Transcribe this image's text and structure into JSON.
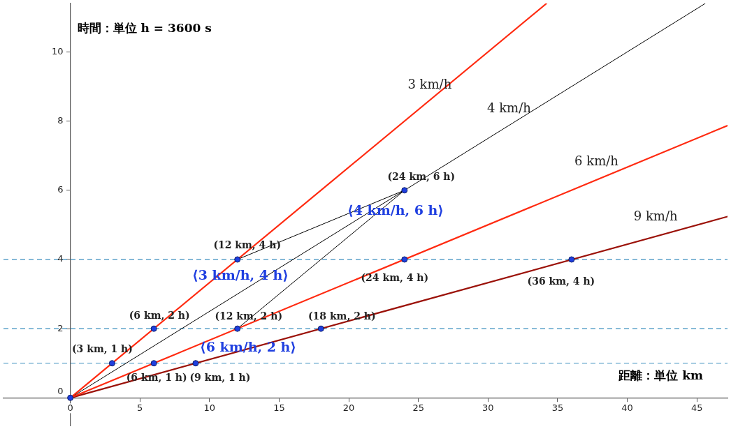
{
  "chart_data": {
    "type": "line",
    "xlabel": "距離：単位 km",
    "ylabel": "時間：単位 h = 3600 s",
    "xlim": [
      -4.8,
      47.2
    ],
    "ylim": [
      -0.8,
      11.4
    ],
    "xticks": [
      0,
      5,
      10,
      15,
      20,
      25,
      30,
      35,
      40,
      45
    ],
    "yticks": [
      0,
      2,
      4,
      6,
      8,
      10
    ],
    "grid": false,
    "legend": false,
    "series": [
      {
        "name": "3 km/h",
        "color": "#ff2a10",
        "x": [
          0,
          34.2
        ],
        "values": [
          0,
          11.4
        ]
      },
      {
        "name": "4 km/h",
        "color": "#000000",
        "x": [
          0,
          45.6
        ],
        "values": [
          0,
          11.4
        ]
      },
      {
        "name": "6 km/h",
        "color": "#ff2a10",
        "x": [
          0,
          47.2
        ],
        "values": [
          0,
          7.87
        ]
      },
      {
        "name": "9 km/h",
        "color": "#9b1108",
        "x": [
          0,
          47.2
        ],
        "values": [
          0,
          5.24
        ]
      },
      {
        "color": "#000000",
        "x": [
          12,
          24
        ],
        "values": [
          4,
          6
        ]
      },
      {
        "color": "#000000",
        "x": [
          12,
          24
        ],
        "values": [
          2,
          6
        ]
      },
      {
        "type": "scatter",
        "color": "#1f3fe0",
        "marker": "circle",
        "x": [
          0,
          3,
          6,
          12,
          24,
          6,
          12,
          24,
          9,
          18,
          36
        ],
        "values": [
          0,
          1,
          2,
          4,
          6,
          1,
          2,
          4,
          1,
          2,
          4
        ],
        "value_labels": [
          null,
          "(3 km, 1 h)",
          "(6 km, 2 h)",
          "(12 km, 4 h)",
          "(24 km, 6 h)",
          "(6 km, 1 h)",
          "(12 km, 2 h)",
          "(24 km, 4 h)",
          "(9 km, 1 h)",
          "(18 km, 2 h)",
          "(36 km, 4 h)"
        ]
      }
    ],
    "ref_lines": [
      {
        "axis": "y",
        "value": 1,
        "color": "#3d8fbf",
        "line_style": "dashed"
      },
      {
        "axis": "y",
        "value": 2,
        "color": "#3d8fbf",
        "line_style": "dashed"
      },
      {
        "axis": "y",
        "value": 4,
        "color": "#3d8fbf",
        "line_style": "dashed"
      }
    ],
    "annotations": [
      "⟨3 km/h, 4 h⟩",
      "⟨4 km/h, 6 h⟩",
      "⟨6 km/h, 2 h⟩"
    ]
  }
}
